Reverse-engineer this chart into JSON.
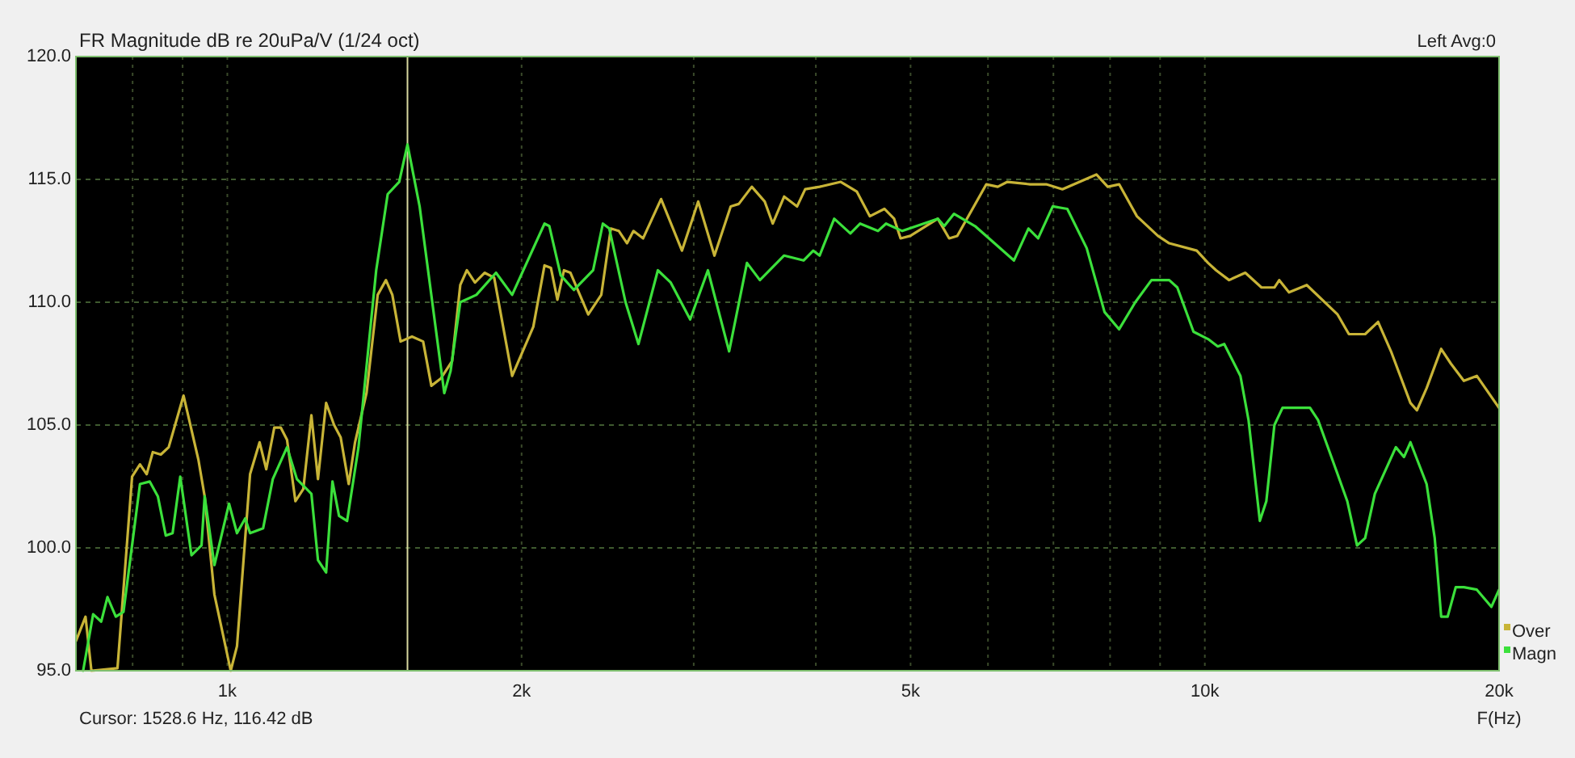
{
  "chart_data": {
    "type": "line",
    "title": "FR Magnitude dB re 20uPa/V (1/24 oct)",
    "xlabel": "F(Hz)",
    "log": "x",
    "grid": true,
    "legend": "bottom right",
    "marker": "none",
    "line_style": "solid",
    "xlim": [
      700,
      20000
    ],
    "ylim": [
      95,
      120
    ],
    "xticks": [
      {
        "value": 800,
        "label": null
      },
      {
        "value": 900,
        "label": null
      },
      {
        "value": 1000,
        "label": "1k"
      },
      {
        "value": 2000,
        "label": "2k"
      },
      {
        "value": 3000,
        "label": null
      },
      {
        "value": 4000,
        "label": null
      },
      {
        "value": 5000,
        "label": "5k"
      },
      {
        "value": 6000,
        "label": null
      },
      {
        "value": 7000,
        "label": null
      },
      {
        "value": 8000,
        "label": null
      },
      {
        "value": 9000,
        "label": null
      },
      {
        "value": 10000,
        "label": "10k"
      },
      {
        "value": 20000,
        "label": "20k"
      }
    ],
    "yticks": [
      {
        "value": 95,
        "label": "95.0"
      },
      {
        "value": 100,
        "label": "100.0"
      },
      {
        "value": 105,
        "label": "105.0"
      },
      {
        "value": 110,
        "label": "110.0"
      },
      {
        "value": 115,
        "label": "115.0"
      },
      {
        "value": 120,
        "label": "120.0"
      }
    ],
    "ref_lines": [
      {
        "axis": "x",
        "value": 1528.6,
        "color": "#d8d8a0"
      }
    ],
    "annotations": [
      "Left  Avg:0",
      "Cursor:  1528.6 Hz, 116.42 dB"
    ],
    "series": [
      {
        "name": "Over",
        "color": "#c8b437",
        "x": [
          700,
          716,
          726,
          772,
          799,
          814,
          827,
          839,
          855,
          871,
          902,
          934,
          948,
          970,
          1008,
          1023,
          1055,
          1079,
          1096,
          1117,
          1134,
          1151,
          1174,
          1196,
          1219,
          1238,
          1262,
          1286,
          1306,
          1331,
          1351,
          1388,
          1425,
          1453,
          1475,
          1504,
          1545,
          1586,
          1617,
          1654,
          1698,
          1731,
          1758,
          1792,
          1833,
          1875,
          1956,
          2056,
          2111,
          2143,
          2176,
          2210,
          2244,
          2340,
          2413,
          2468,
          2515,
          2564,
          2603,
          2663,
          2778,
          2918,
          3032,
          3150,
          3273,
          3336,
          3440,
          3546,
          3614,
          3712,
          3827,
          3901,
          4036,
          4242,
          4406,
          4542,
          4701,
          4810,
          4884,
          4997,
          5331,
          5476,
          5581,
          5977,
          6140,
          6281,
          6626,
          6883,
          7150,
          7746,
          7956,
          8172,
          8522,
          8954,
          9196,
          9811,
          10077,
          10270,
          10588,
          11000,
          11428,
          11781,
          11917,
          12193,
          12714,
          13672,
          14041,
          14588,
          15040,
          15505,
          16231,
          16480,
          16861,
          17450,
          17854,
          18407,
          18978,
          20000
        ],
        "values": [
          96.2,
          97.2,
          95.0,
          95.1,
          102.9,
          103.4,
          103.0,
          103.9,
          103.8,
          104.1,
          106.2,
          103.6,
          102.1,
          98.1,
          95.0,
          96.0,
          103.0,
          104.3,
          103.2,
          104.9,
          104.9,
          104.4,
          101.9,
          102.4,
          105.4,
          102.8,
          105.9,
          105.0,
          104.5,
          102.6,
          104.3,
          106.3,
          110.3,
          110.9,
          110.3,
          108.4,
          108.6,
          108.4,
          106.6,
          106.9,
          107.6,
          110.7,
          111.3,
          110.8,
          111.2,
          111.0,
          107.0,
          109.0,
          111.5,
          111.4,
          110.1,
          111.3,
          111.2,
          109.5,
          110.3,
          113.0,
          112.9,
          112.4,
          112.9,
          112.6,
          114.2,
          112.1,
          114.1,
          111.9,
          113.9,
          114.0,
          114.7,
          114.1,
          113.2,
          114.3,
          113.9,
          114.6,
          114.7,
          114.9,
          114.5,
          113.5,
          113.8,
          113.4,
          112.6,
          112.7,
          113.4,
          112.6,
          112.7,
          114.8,
          114.7,
          114.9,
          114.8,
          114.8,
          114.6,
          115.2,
          114.7,
          114.8,
          113.5,
          112.7,
          112.4,
          112.1,
          111.6,
          111.3,
          110.9,
          111.2,
          110.6,
          110.6,
          110.9,
          110.4,
          110.7,
          109.5,
          108.7,
          108.7,
          109.2,
          108.0,
          105.9,
          105.6,
          106.5,
          108.1,
          107.5,
          106.8,
          107.0,
          105.7
        ]
      },
      {
        "name": "Magn",
        "color": "#3be03b",
        "x": [
          712,
          729,
          743,
          754,
          769,
          783,
          814,
          833,
          849,
          865,
          879,
          895,
          919,
          941,
          948,
          970,
          1004,
          1023,
          1043,
          1055,
          1088,
          1113,
          1151,
          1178,
          1219,
          1238,
          1262,
          1281,
          1301,
          1326,
          1362,
          1393,
          1420,
          1459,
          1499,
          1528.6,
          1573,
          1667,
          1692,
          1731,
          1798,
          1883,
          1956,
          2111,
          2135,
          2193,
          2262,
          2367,
          2422,
          2459,
          2555,
          2634,
          2757,
          2842,
          2975,
          3102,
          3261,
          3401,
          3506,
          3712,
          3886,
          3976,
          4036,
          4177,
          4339,
          4440,
          4630,
          4719,
          4903,
          5331,
          5413,
          5539,
          5820,
          6093,
          6378,
          6600,
          6753,
          6989,
          7233,
          7571,
          7896,
          8172,
          8489,
          8819,
          9196,
          9373,
          9737,
          10077,
          10310,
          10468,
          10875,
          11085,
          11384,
          11559,
          11781,
          12008,
          12812,
          13059,
          13672,
          13988,
          14312,
          14588,
          14925,
          15683,
          15985,
          16231,
          16861,
          17186,
          17450,
          17718,
          18059,
          18407,
          18978,
          19643,
          20000
        ],
        "values": [
          95.0,
          97.3,
          97.0,
          98.0,
          97.2,
          97.4,
          102.6,
          102.7,
          102.1,
          100.5,
          100.6,
          102.9,
          99.7,
          100.1,
          102.1,
          99.3,
          101.8,
          100.6,
          101.2,
          100.6,
          100.8,
          102.8,
          104.1,
          102.8,
          102.2,
          99.5,
          99.0,
          102.7,
          101.3,
          101.1,
          104.1,
          108.0,
          111.3,
          114.4,
          114.9,
          116.42,
          113.9,
          106.3,
          107.2,
          110.0,
          110.3,
          111.2,
          110.3,
          113.2,
          113.1,
          111.1,
          110.5,
          111.3,
          113.2,
          113.0,
          110.0,
          108.3,
          111.3,
          110.8,
          109.3,
          111.3,
          108.0,
          111.6,
          110.9,
          111.9,
          111.7,
          112.1,
          111.9,
          113.4,
          112.8,
          113.2,
          112.9,
          113.2,
          112.9,
          113.4,
          113.1,
          113.6,
          113.1,
          112.4,
          111.7,
          113.0,
          112.6,
          113.9,
          113.8,
          112.2,
          109.6,
          108.9,
          110.0,
          110.9,
          110.9,
          110.6,
          108.8,
          108.5,
          108.2,
          108.3,
          107.0,
          105.2,
          101.1,
          101.9,
          105.0,
          105.7,
          105.7,
          105.2,
          103.0,
          101.9,
          100.1,
          100.4,
          102.2,
          104.1,
          103.7,
          104.3,
          102.6,
          100.4,
          97.2,
          97.2,
          98.4,
          98.4,
          98.3,
          97.6,
          98.3
        ]
      }
    ]
  }
}
